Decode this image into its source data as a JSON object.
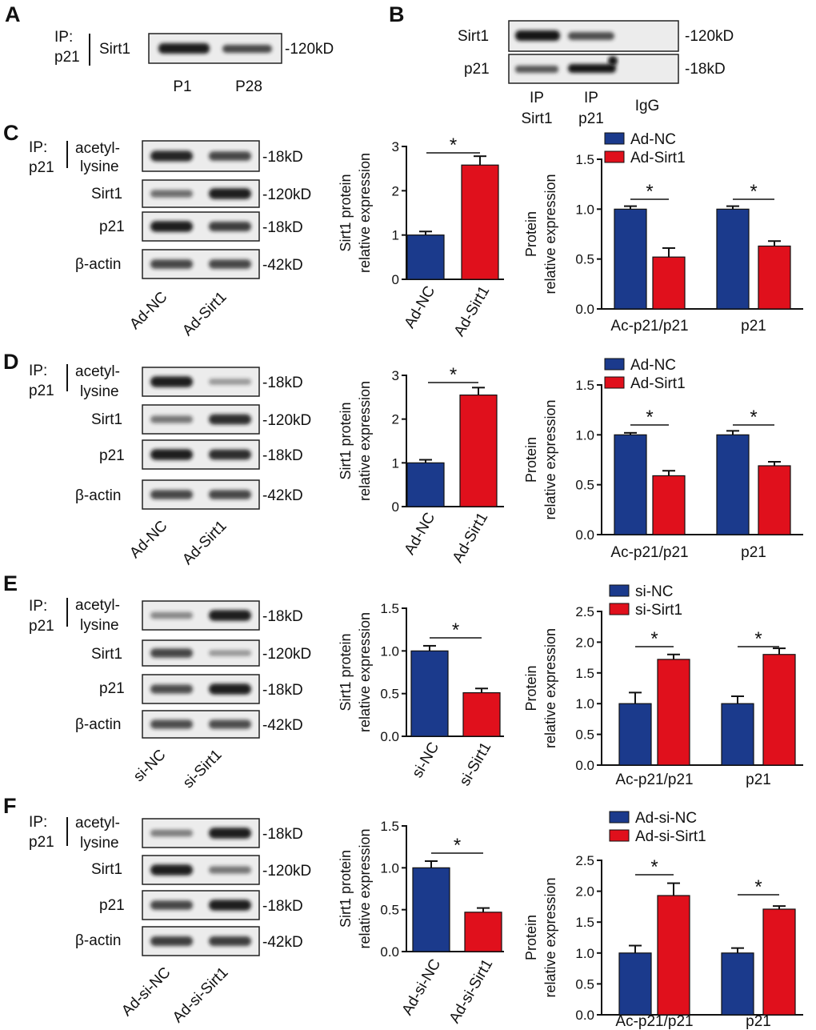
{
  "colors": {
    "navy": "#1b3a8c",
    "red": "#e0101c",
    "axis": "#111111"
  },
  "panel_A": {
    "letter": "A",
    "ip_label": [
      "IP:",
      "p21"
    ],
    "band_label": "Sirt1",
    "size": "-120kD",
    "lanes": [
      "P1",
      "P28"
    ]
  },
  "panel_B": {
    "letter": "B",
    "rows": [
      {
        "label": "Sirt1",
        "size": "-120kD"
      },
      {
        "label": "p21",
        "size": "-18kD"
      }
    ],
    "lanes": [
      [
        "IP",
        "Sirt1"
      ],
      [
        "IP",
        "p21"
      ],
      [
        "IgG"
      ]
    ]
  },
  "blot_panels": [
    {
      "letter": "C",
      "ip_label": [
        "IP:",
        "p21"
      ],
      "rows": [
        {
          "label": [
            "acetyl-",
            "lysine"
          ],
          "size": "-18kD"
        },
        {
          "label": [
            "Sirt1"
          ],
          "size": "-120kD"
        },
        {
          "label": [
            "p21"
          ],
          "size": "-18kD"
        },
        {
          "label": [
            "β-actin"
          ],
          "size": "-42kD"
        }
      ],
      "lanes": [
        "Ad-NC",
        "Ad-Sirt1"
      ]
    },
    {
      "letter": "D",
      "ip_label": [
        "IP:",
        "p21"
      ],
      "rows": [
        {
          "label": [
            "acetyl-",
            "lysine"
          ],
          "size": "-18kD"
        },
        {
          "label": [
            "Sirt1"
          ],
          "size": "-120kD"
        },
        {
          "label": [
            "p21"
          ],
          "size": "-18kD"
        },
        {
          "label": [
            "β-actin"
          ],
          "size": "-42kD"
        }
      ],
      "lanes": [
        "Ad-NC",
        "Ad-Sirt1"
      ]
    },
    {
      "letter": "E",
      "ip_label": [
        "IP:",
        "p21"
      ],
      "rows": [
        {
          "label": [
            "acetyl-",
            "lysine"
          ],
          "size": "-18kD"
        },
        {
          "label": [
            "Sirt1"
          ],
          "size": "-120kD"
        },
        {
          "label": [
            "p21"
          ],
          "size": "-18kD"
        },
        {
          "label": [
            "β-actin"
          ],
          "size": "-42kD"
        }
      ],
      "lanes": [
        "si-NC",
        "si-Sirt1"
      ]
    },
    {
      "letter": "F",
      "ip_label": [
        "IP:",
        "p21"
      ],
      "rows": [
        {
          "label": [
            "acetyl-",
            "lysine"
          ],
          "size": "-18kD"
        },
        {
          "label": [
            "Sirt1"
          ],
          "size": "-120kD"
        },
        {
          "label": [
            "p21"
          ],
          "size": "-18kD"
        },
        {
          "label": [
            "β-actin"
          ],
          "size": "-42kD"
        }
      ],
      "lanes": [
        "Ad-si-NC",
        "Ad-si-Sirt1"
      ]
    }
  ],
  "chart_data": [
    {
      "id": "C1",
      "panel": "C",
      "type": "bar",
      "ylabel": [
        "Sirt1 protein",
        "relative expression"
      ],
      "ylim": [
        0,
        3
      ],
      "yticks": [
        0,
        1,
        2,
        3
      ],
      "tick_labels": [
        "0",
        "1",
        "2",
        "3"
      ],
      "categories": [
        "Ad-NC",
        "Ad-Sirt1"
      ],
      "values": [
        1.0,
        2.58
      ],
      "errors": [
        0.08,
        0.2
      ],
      "significance": "*"
    },
    {
      "id": "C2",
      "panel": "C",
      "type": "bar",
      "ylabel": [
        "Protein",
        "relative expression"
      ],
      "ylim": [
        0,
        1.5
      ],
      "yticks": [
        0,
        0.5,
        1.0,
        1.5
      ],
      "tick_labels": [
        "0.0",
        "0.5",
        "1.0",
        "1.5"
      ],
      "categories": [
        "Ac-p21/p21",
        "p21"
      ],
      "series": [
        {
          "name": "Ad-NC",
          "values": [
            1.0,
            1.0
          ],
          "errors": [
            0.03,
            0.03
          ]
        },
        {
          "name": "Ad-Sirt1",
          "values": [
            0.52,
            0.63
          ],
          "errors": [
            0.09,
            0.05
          ]
        }
      ],
      "significance": [
        "*",
        "*"
      ]
    },
    {
      "id": "D1",
      "panel": "D",
      "type": "bar",
      "ylabel": [
        "Sirt1 protein",
        "relative expression"
      ],
      "ylim": [
        0,
        3
      ],
      "yticks": [
        0,
        1,
        2,
        3
      ],
      "tick_labels": [
        "0",
        "1",
        "2",
        "3"
      ],
      "categories": [
        "Ad-NC",
        "Ad-Sirt1"
      ],
      "values": [
        1.0,
        2.55
      ],
      "errors": [
        0.07,
        0.17
      ],
      "significance": "*"
    },
    {
      "id": "D2",
      "panel": "D",
      "type": "bar",
      "ylabel": [
        "Protein",
        "relative expression"
      ],
      "ylim": [
        0,
        1.5
      ],
      "yticks": [
        0,
        0.5,
        1.0,
        1.5
      ],
      "tick_labels": [
        "0.0",
        "0.5",
        "1.0",
        "1.5"
      ],
      "categories": [
        "Ac-p21/p21",
        "p21"
      ],
      "series": [
        {
          "name": "Ad-NC",
          "values": [
            1.0,
            1.0
          ],
          "errors": [
            0.02,
            0.04
          ]
        },
        {
          "name": "Ad-Sirt1",
          "values": [
            0.59,
            0.69
          ],
          "errors": [
            0.05,
            0.04
          ]
        }
      ],
      "significance": [
        "*",
        "*"
      ]
    },
    {
      "id": "E1",
      "panel": "E",
      "type": "bar",
      "ylabel": [
        "Sirt1 protein",
        "relative expression"
      ],
      "ylim": [
        0,
        1.5
      ],
      "yticks": [
        0,
        0.5,
        1.0,
        1.5
      ],
      "tick_labels": [
        "0.0",
        "0.5",
        "1.0",
        "1.5"
      ],
      "categories": [
        "si-NC",
        "si-Sirt1"
      ],
      "values": [
        1.0,
        0.51
      ],
      "errors": [
        0.06,
        0.05
      ],
      "significance": "*"
    },
    {
      "id": "E2",
      "panel": "E",
      "type": "bar",
      "ylabel": [
        "Protein",
        "relative expression"
      ],
      "ylim": [
        0,
        2.5
      ],
      "yticks": [
        0,
        0.5,
        1.0,
        1.5,
        2.0,
        2.5
      ],
      "tick_labels": [
        "0.0",
        "0.5",
        "1.0",
        "1.5",
        "2.0",
        "2.5"
      ],
      "categories": [
        "Ac-p21/p21",
        "p21"
      ],
      "series": [
        {
          "name": "si-NC",
          "values": [
            1.0,
            1.0
          ],
          "errors": [
            0.18,
            0.12
          ]
        },
        {
          "name": "si-Sirt1",
          "values": [
            1.72,
            1.8
          ],
          "errors": [
            0.08,
            0.1
          ]
        }
      ],
      "significance": [
        "*",
        "*"
      ]
    },
    {
      "id": "F1",
      "panel": "F",
      "type": "bar",
      "ylabel": [
        "Sirt1 protein",
        "relative expression"
      ],
      "ylim": [
        0,
        1.5
      ],
      "yticks": [
        0,
        0.5,
        1.0,
        1.5
      ],
      "tick_labels": [
        "0.0",
        "0.5",
        "1.0",
        "1.5"
      ],
      "categories": [
        "Ad-si-NC",
        "Ad-si-Sirt1"
      ],
      "values": [
        1.0,
        0.47
      ],
      "errors": [
        0.08,
        0.05
      ],
      "significance": "*"
    },
    {
      "id": "F2",
      "panel": "F",
      "type": "bar",
      "ylabel": [
        "Protein",
        "relative expression"
      ],
      "ylim": [
        0,
        2.5
      ],
      "yticks": [
        0,
        0.5,
        1.0,
        1.5,
        2.0,
        2.5
      ],
      "tick_labels": [
        "0.0",
        "0.5",
        "1.0",
        "1.5",
        "2.0",
        "2.5"
      ],
      "categories": [
        "Ac-p21/p21",
        "p21"
      ],
      "series": [
        {
          "name": "Ad-si-NC",
          "values": [
            1.0,
            1.0
          ],
          "errors": [
            0.12,
            0.08
          ]
        },
        {
          "name": "Ad-si-Sirt1",
          "values": [
            1.93,
            1.71
          ],
          "errors": [
            0.2,
            0.05
          ]
        }
      ],
      "significance": [
        "*",
        "*"
      ]
    }
  ]
}
